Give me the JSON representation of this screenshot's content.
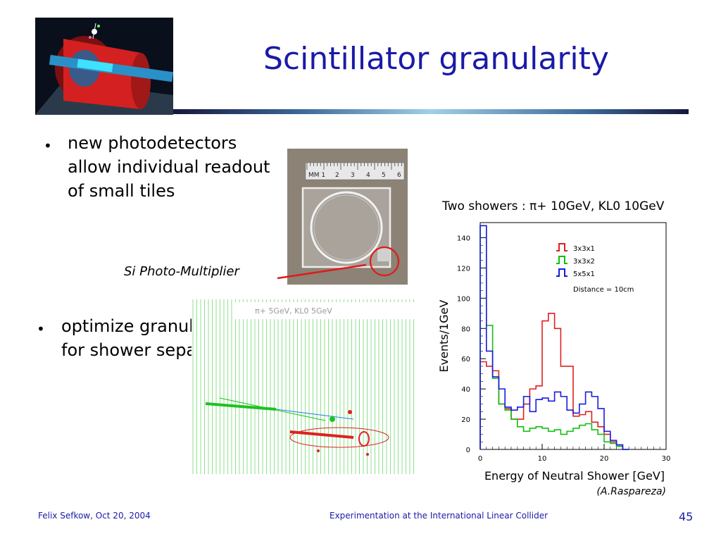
{
  "slide": {
    "title": "Scintillator granularity",
    "bullet1": "new photodetectors allow individual readout of small tiles",
    "bullet2": "optimize granularity for shower separation",
    "sipm_label": "Si Photo-Multiplier",
    "event_display_label": "π+ 5GeV, KL0 5GeV",
    "ruler_labels": [
      "MM 1",
      "2",
      "3",
      "4",
      "5",
      "6"
    ]
  },
  "footer": {
    "left": "Felix Sefkow, Oct 20, 2004",
    "center": "Experimentation at the International Linear Collider",
    "page_number": "45"
  },
  "chart_data": {
    "type": "line",
    "title": "Two showers : π+ 10GeV, KL0 10GeV",
    "xlabel": "Energy of Neutral Shower [GeV]",
    "ylabel": "Events/1GeV",
    "xlim": [
      0,
      30
    ],
    "ylim": [
      0,
      150
    ],
    "xticks": [
      0,
      10,
      20,
      30
    ],
    "yticks": [
      0,
      20,
      40,
      60,
      80,
      100,
      120,
      140
    ],
    "annotation": "Distance = 10cm",
    "credit": "(A.Raspareza)",
    "bin_edges": [
      0,
      1,
      2,
      3,
      4,
      5,
      6,
      7,
      8,
      9,
      10,
      11,
      12,
      13,
      14,
      15,
      16,
      17,
      18,
      19,
      20,
      21,
      22,
      23,
      24
    ],
    "series": [
      {
        "name": "3x3x1",
        "color": "#e02020",
        "values": [
          58,
          55,
          52,
          30,
          27,
          20,
          20,
          30,
          40,
          42,
          85,
          90,
          80,
          55,
          55,
          22,
          23,
          25,
          18,
          15,
          10,
          5,
          3,
          0
        ]
      },
      {
        "name": "3x3x2",
        "color": "#10c010",
        "values": [
          148,
          82,
          47,
          30,
          26,
          20,
          15,
          12,
          14,
          15,
          14,
          12,
          13,
          10,
          12,
          14,
          16,
          17,
          13,
          10,
          5,
          4,
          2,
          0
        ]
      },
      {
        "name": "5x5x1",
        "color": "#1a1ae0",
        "values": [
          148,
          65,
          48,
          40,
          28,
          26,
          28,
          35,
          25,
          33,
          34,
          32,
          38,
          35,
          26,
          24,
          30,
          38,
          35,
          27,
          12,
          6,
          3,
          0
        ]
      }
    ]
  },
  "colors": {
    "title": "#1a1aa8",
    "footer": "#1a1aa8",
    "laser_pointer": "#e01a1a"
  }
}
